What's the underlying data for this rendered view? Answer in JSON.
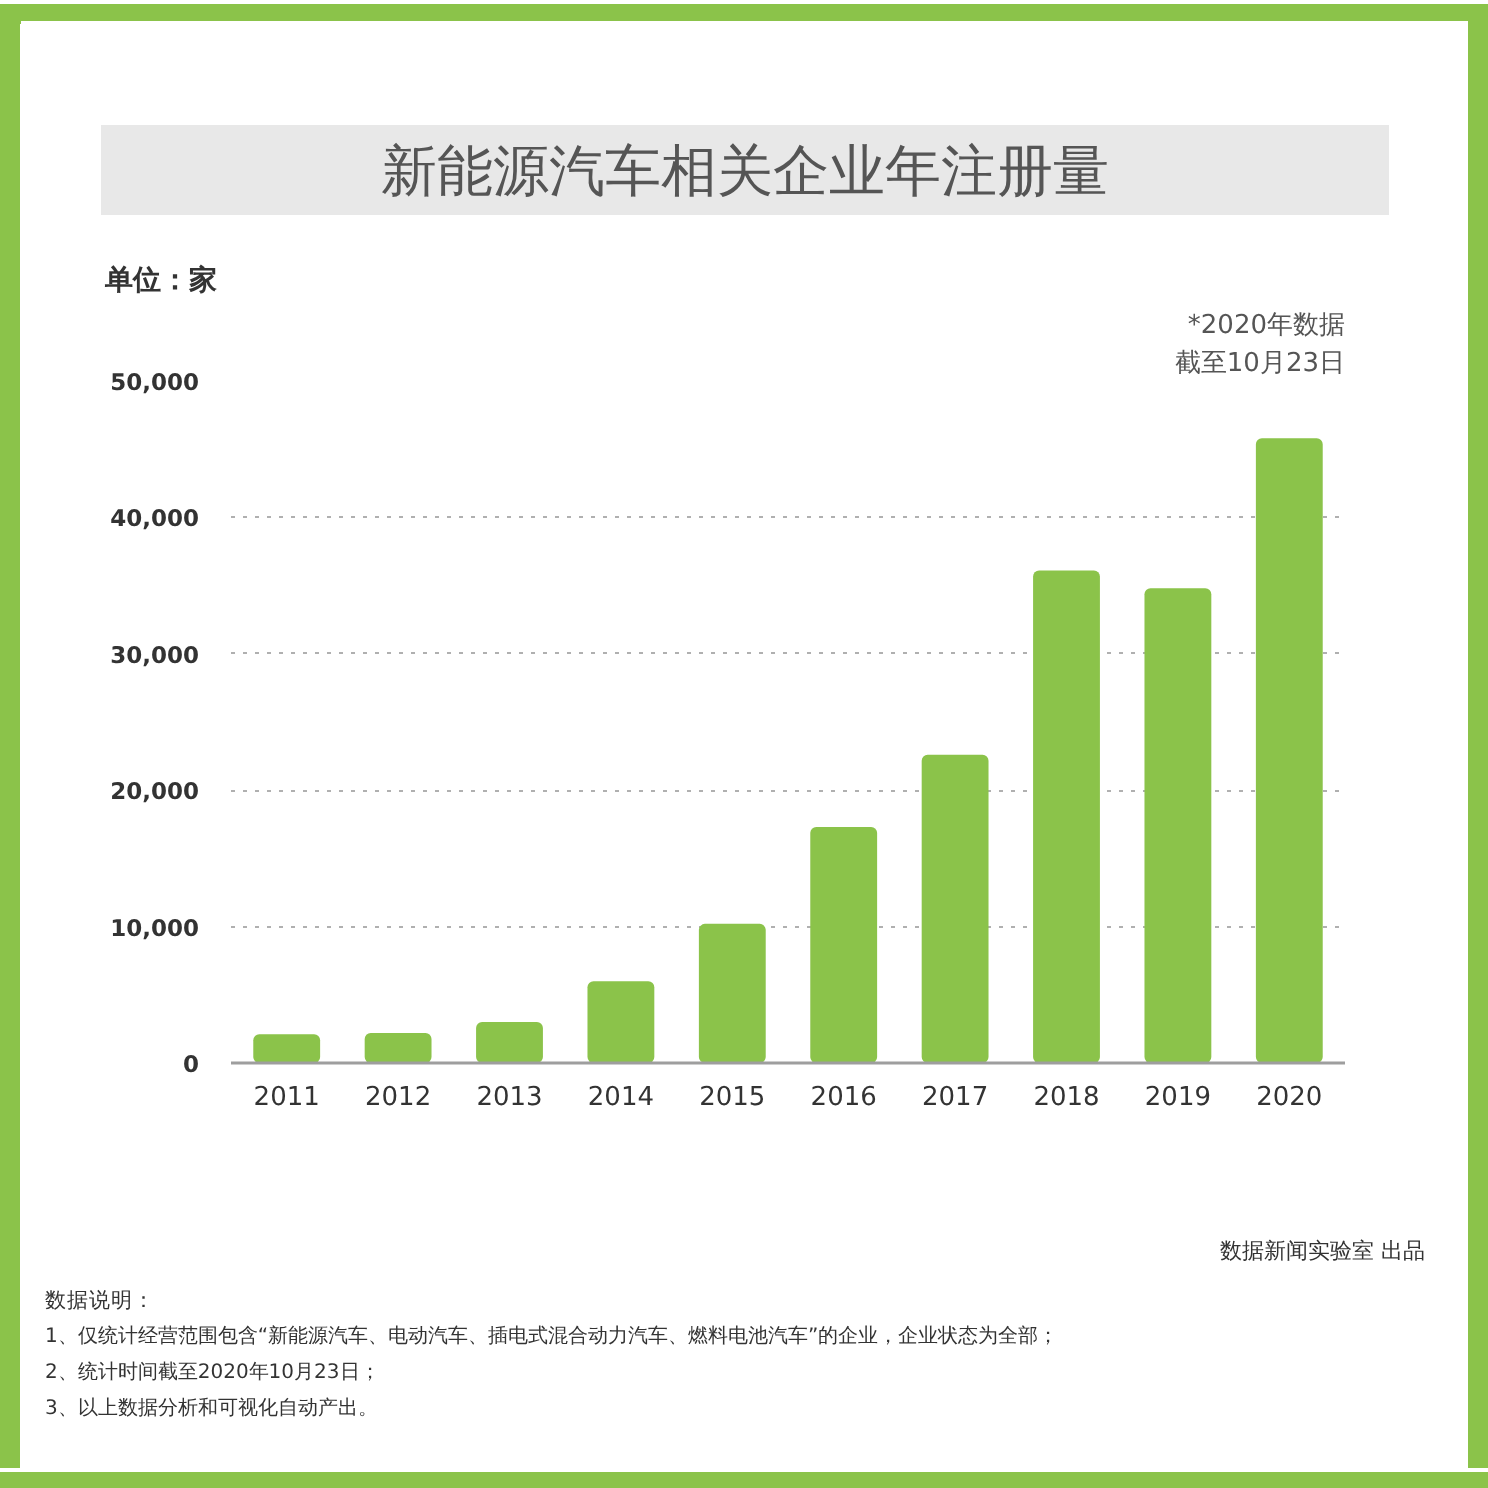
{
  "chart_data": {
    "type": "bar",
    "title": "新能源汽车相关企业年注册量",
    "ylabel": "单位：家",
    "categories": [
      "2011",
      "2012",
      "2013",
      "2014",
      "2015",
      "2016",
      "2017",
      "2018",
      "2019",
      "2020"
    ],
    "values": [
      2100,
      2200,
      3000,
      6000,
      10200,
      17300,
      22600,
      36100,
      34800,
      45800
    ],
    "color": "#8bc34a",
    "ylim": [
      0,
      50000
    ],
    "yticks": [
      0,
      {
        "value": 10000,
        "label": "10,000"
      },
      {
        "value": 20000,
        "label": "20,000"
      },
      {
        "value": 30000,
        "label": "30,000"
      },
      {
        "value": 40000,
        "label": "40,000"
      },
      {
        "value": 50000,
        "label": "50,000"
      }
    ],
    "grid": "y",
    "annotations": [
      "*2020年数据",
      "截至10月23日",
      "数据新闻实验室 出品",
      "数据说明：",
      "1、仅统计经营范围包含“新能源汽车、电动汽车、插电式混合动力汽车、燃料电池汽车”的企业，企业状态为全部；",
      "2、统计时间截至2020年10月23日；",
      "3、以上数据分析和可视化自动产出。"
    ]
  }
}
